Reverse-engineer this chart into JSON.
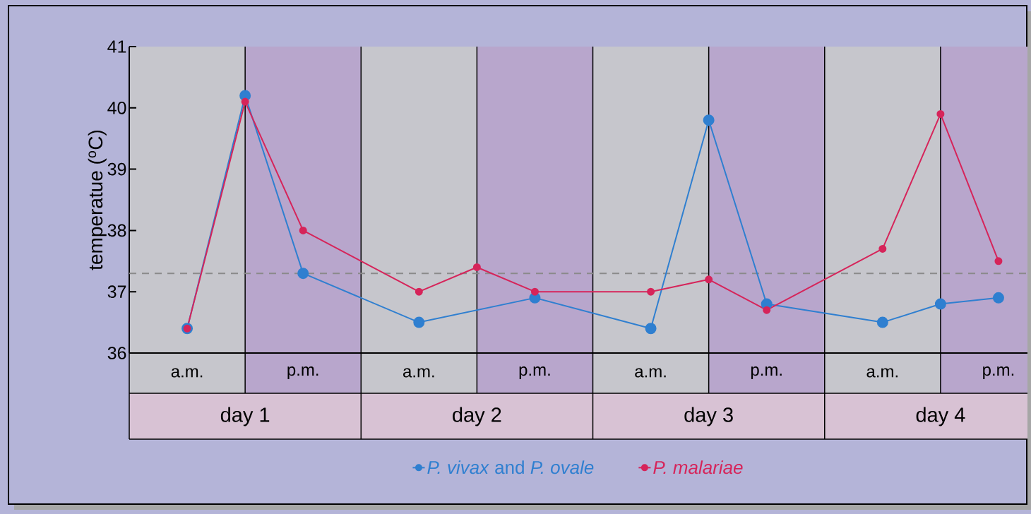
{
  "chart_data": {
    "type": "line",
    "ylabel": "temperatue ($^{o}$C)",
    "categories": [
      null,
      "a.m.",
      null,
      "p.m.",
      null,
      "a.m.",
      null,
      "p.m.",
      null,
      "a.m.",
      null,
      "p.m.",
      null,
      "a.m.",
      null,
      "p.m."
    ],
    "ylim": [
      36,
      41
    ],
    "yticks": [
      36,
      37,
      38,
      39,
      40,
      41
    ],
    "series": [
      {
        "name": "*P. vivax* and *P. ovale*",
        "color": "#2f7fd0",
        "values": [
          null,
          36.4,
          40.2,
          37.3,
          null,
          36.5,
          null,
          36.9,
          null,
          36.4,
          39.8,
          36.8,
          null,
          36.5,
          36.8,
          36.9
        ]
      },
      {
        "name": "*P. malariae*",
        "color": "#d6245a",
        "values": [
          null,
          36.4,
          40.1,
          38.0,
          null,
          37.0,
          37.4,
          37.0,
          null,
          37.0,
          37.2,
          36.7,
          null,
          37.7,
          39.9,
          37.5
        ]
      }
    ],
    "annotations": [
      "day 1",
      "day 2",
      "day 3",
      "day 4"
    ],
    "ref_lines": [
      {
        "axis": "y",
        "value": 37.3,
        "color": "#8a8a8a",
        "line_style": "dashed"
      }
    ],
    "grid": "x",
    "marker": "circle",
    "line_style": "solid",
    "legend": "bottom"
  }
}
